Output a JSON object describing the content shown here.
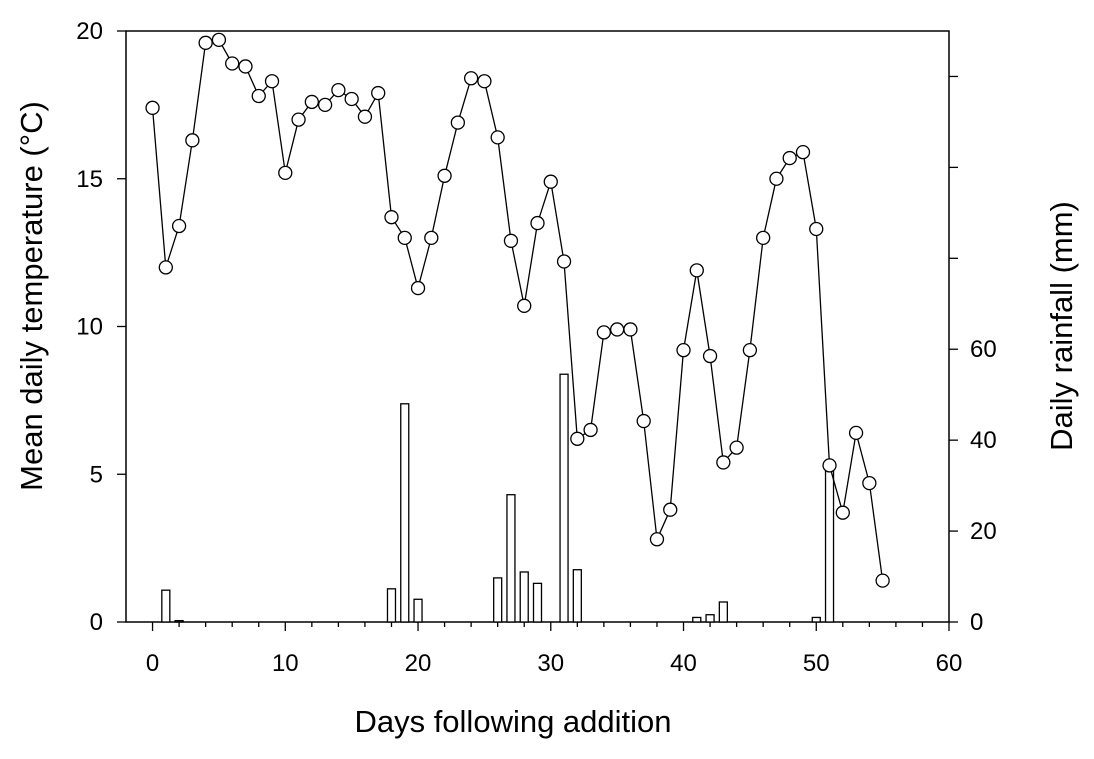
{
  "chart_data": {
    "type": "bar+line",
    "xlabel": "Days following addition",
    "ylabel_left": "Mean daily temperature (°C)",
    "ylabel_right": "Daily rainfall (mm)",
    "xlim": [
      -2,
      60
    ],
    "ylim_left": [
      0,
      20
    ],
    "ylim_right": [
      0,
      130
    ],
    "x_ticks": [
      0,
      10,
      20,
      30,
      40,
      50,
      60
    ],
    "y_left_ticks": [
      0,
      5,
      10,
      15,
      20
    ],
    "y_right_ticks": [
      0,
      20,
      40,
      60
    ],
    "grid": false,
    "series": [
      {
        "kind": "line",
        "marker": "open-circle",
        "axis": "left",
        "x": [
          0,
          1,
          2,
          3,
          4,
          5,
          6,
          7,
          8,
          9,
          10,
          11,
          12,
          13,
          14,
          15,
          16,
          17,
          18,
          19,
          20,
          21,
          22,
          23,
          24,
          25,
          26,
          27,
          28,
          29,
          30,
          31,
          32,
          33,
          34,
          35,
          36,
          37,
          38,
          39,
          40,
          41,
          42,
          43,
          44,
          45,
          46,
          47,
          48,
          49,
          50,
          51,
          52,
          53,
          54,
          55
        ],
        "y": [
          17.4,
          12.0,
          13.4,
          16.3,
          19.6,
          19.7,
          18.9,
          18.8,
          17.8,
          18.3,
          15.2,
          17.0,
          17.6,
          17.5,
          18.0,
          17.7,
          17.1,
          17.9,
          13.7,
          13.0,
          11.3,
          13.0,
          15.1,
          16.9,
          18.4,
          18.3,
          16.4,
          12.9,
          10.7,
          13.5,
          14.9,
          12.2,
          6.2,
          6.5,
          9.8,
          9.9,
          9.9,
          6.8,
          2.8,
          3.8,
          9.2,
          11.9,
          9.0,
          5.4,
          5.9,
          9.2,
          13.0,
          15.0,
          15.7,
          15.9,
          13.3,
          5.3,
          3.7,
          6.4,
          4.7,
          1.4
        ]
      },
      {
        "kind": "bar",
        "axis": "right",
        "x": [
          1,
          2,
          18,
          19,
          20,
          26,
          27,
          28,
          29,
          31,
          32,
          41,
          42,
          43,
          50,
          51
        ],
        "y": [
          7,
          0.3,
          7.3,
          48,
          5,
          9.7,
          28,
          11,
          8.5,
          54.5,
          11.5,
          1,
          1.6,
          4.4,
          1,
          34.5
        ]
      }
    ]
  }
}
